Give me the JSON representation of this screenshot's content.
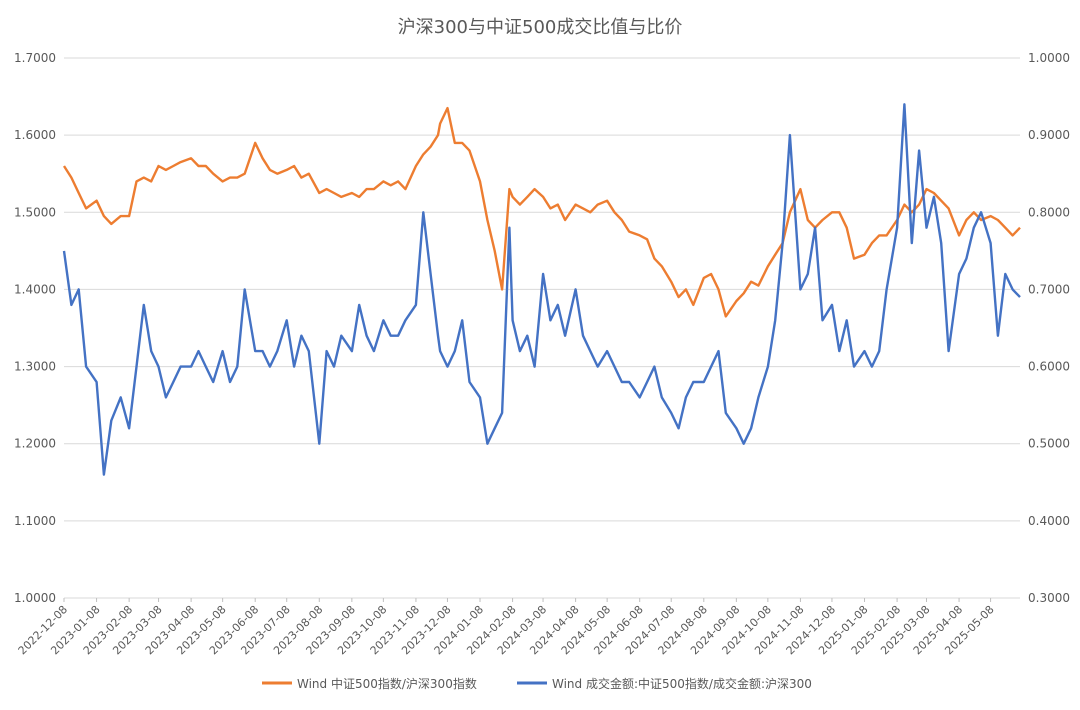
{
  "chart_data": {
    "type": "line",
    "title": "沪深300与中证500成交比值与比价",
    "xlabel": "",
    "ylabel": "",
    "x_tick_labels": [
      "2022-12-08",
      "2023-01-08",
      "2023-02-08",
      "2023-03-08",
      "2023-04-08",
      "2023-05-08",
      "2023-06-08",
      "2023-07-08",
      "2023-08-08",
      "2023-09-08",
      "2023-10-08",
      "2023-11-08",
      "2023-12-08",
      "2024-01-08",
      "2024-02-08",
      "2024-03-08",
      "2024-04-08",
      "2024-05-08",
      "2024-06-08",
      "2024-07-08",
      "2024-08-08",
      "2024-09-08",
      "2024-10-08",
      "2024-11-08",
      "2024-12-08",
      "2025-01-08",
      "2025-02-08",
      "2025-03-08",
      "2025-04-08",
      "2025-05-08"
    ],
    "y_left": {
      "min": 1.0,
      "max": 1.7,
      "ticks": [
        "1.0000",
        "1.1000",
        "1.2000",
        "1.3000",
        "1.4000",
        "1.5000",
        "1.6000",
        "1.7000"
      ]
    },
    "y_right": {
      "min": 0.3,
      "max": 1.0,
      "ticks": [
        "0.3000",
        "0.4000",
        "0.5000",
        "0.6000",
        "0.7000",
        "0.8000",
        "0.9000",
        "1.0000"
      ]
    },
    "grid": true,
    "legend_position": "bottom",
    "series": [
      {
        "name": "Wind 中证500指数/沪深300指数",
        "axis": "left",
        "color": "#ED7D31",
        "x": [
          "2022-12-08",
          "2022-12-15",
          "2022-12-22",
          "2022-12-29",
          "2023-01-08",
          "2023-01-15",
          "2023-01-22",
          "2023-01-31",
          "2023-02-08",
          "2023-02-15",
          "2023-02-22",
          "2023-03-01",
          "2023-03-08",
          "2023-03-15",
          "2023-03-22",
          "2023-03-29",
          "2023-04-08",
          "2023-04-15",
          "2023-04-22",
          "2023-04-29",
          "2023-05-08",
          "2023-05-15",
          "2023-05-22",
          "2023-05-29",
          "2023-06-08",
          "2023-06-15",
          "2023-06-22",
          "2023-06-29",
          "2023-07-08",
          "2023-07-15",
          "2023-07-22",
          "2023-07-29",
          "2023-08-08",
          "2023-08-15",
          "2023-08-22",
          "2023-08-29",
          "2023-09-08",
          "2023-09-15",
          "2023-09-22",
          "2023-09-29",
          "2023-10-08",
          "2023-10-15",
          "2023-10-22",
          "2023-10-29",
          "2023-11-08",
          "2023-11-15",
          "2023-11-22",
          "2023-11-29",
          "2023-12-01",
          "2023-12-08",
          "2023-12-15",
          "2023-12-22",
          "2023-12-29",
          "2024-01-08",
          "2024-01-15",
          "2024-01-22",
          "2024-01-29",
          "2024-02-05",
          "2024-02-08",
          "2024-02-15",
          "2024-02-22",
          "2024-02-29",
          "2024-03-08",
          "2024-03-15",
          "2024-03-22",
          "2024-03-29",
          "2024-04-08",
          "2024-04-15",
          "2024-04-22",
          "2024-04-29",
          "2024-05-08",
          "2024-05-15",
          "2024-05-22",
          "2024-05-29",
          "2024-06-08",
          "2024-06-15",
          "2024-06-22",
          "2024-06-29",
          "2024-07-08",
          "2024-07-15",
          "2024-07-22",
          "2024-07-29",
          "2024-08-08",
          "2024-08-15",
          "2024-08-22",
          "2024-08-29",
          "2024-09-08",
          "2024-09-15",
          "2024-09-22",
          "2024-09-29",
          "2024-10-08",
          "2024-10-15",
          "2024-10-22",
          "2024-10-29",
          "2024-11-08",
          "2024-11-15",
          "2024-11-22",
          "2024-11-29",
          "2024-12-08",
          "2024-12-15",
          "2024-12-22",
          "2024-12-29",
          "2025-01-08",
          "2025-01-15",
          "2025-01-22",
          "2025-01-29",
          "2025-02-08",
          "2025-02-15",
          "2025-02-22",
          "2025-03-01",
          "2025-03-08",
          "2025-03-15",
          "2025-03-22",
          "2025-03-29",
          "2025-04-08",
          "2025-04-15",
          "2025-04-22",
          "2025-04-29",
          "2025-05-08",
          "2025-05-15",
          "2025-05-22",
          "2025-05-29",
          "2025-06-05"
        ],
        "values": [
          1.56,
          1.545,
          1.525,
          1.505,
          1.515,
          1.495,
          1.485,
          1.495,
          1.495,
          1.54,
          1.545,
          1.54,
          1.56,
          1.555,
          1.56,
          1.565,
          1.57,
          1.56,
          1.56,
          1.55,
          1.54,
          1.545,
          1.545,
          1.55,
          1.59,
          1.57,
          1.555,
          1.55,
          1.555,
          1.56,
          1.545,
          1.55,
          1.525,
          1.53,
          1.525,
          1.52,
          1.525,
          1.52,
          1.53,
          1.53,
          1.54,
          1.535,
          1.54,
          1.53,
          1.56,
          1.575,
          1.585,
          1.6,
          1.615,
          1.635,
          1.59,
          1.59,
          1.58,
          1.54,
          1.49,
          1.45,
          1.4,
          1.53,
          1.52,
          1.51,
          1.52,
          1.53,
          1.52,
          1.505,
          1.51,
          1.49,
          1.51,
          1.505,
          1.5,
          1.51,
          1.515,
          1.5,
          1.49,
          1.475,
          1.47,
          1.465,
          1.44,
          1.43,
          1.41,
          1.39,
          1.4,
          1.38,
          1.415,
          1.42,
          1.4,
          1.365,
          1.385,
          1.395,
          1.41,
          1.405,
          1.43,
          1.445,
          1.46,
          1.5,
          1.53,
          1.49,
          1.48,
          1.49,
          1.5,
          1.5,
          1.48,
          1.44,
          1.445,
          1.46,
          1.47,
          1.47,
          1.49,
          1.51,
          1.5,
          1.51,
          1.53,
          1.525,
          1.515,
          1.505,
          1.47,
          1.49,
          1.5,
          1.49,
          1.495,
          1.49,
          1.48,
          1.47,
          1.48
        ],
        "_x_second": []
      },
      {
        "name": "Wind 成交金额:中证500指数/成交金额:沪深300",
        "axis": "right",
        "color": "#4472C4",
        "x": [
          "2022-12-08",
          "2022-12-15",
          "2022-12-22",
          "2022-12-29",
          "2023-01-08",
          "2023-01-15",
          "2023-01-22",
          "2023-01-31",
          "2023-02-08",
          "2023-02-15",
          "2023-02-22",
          "2023-03-01",
          "2023-03-08",
          "2023-03-15",
          "2023-03-22",
          "2023-03-29",
          "2023-04-08",
          "2023-04-15",
          "2023-04-22",
          "2023-04-29",
          "2023-05-08",
          "2023-05-15",
          "2023-05-22",
          "2023-05-29",
          "2023-06-08",
          "2023-06-15",
          "2023-06-22",
          "2023-06-29",
          "2023-07-08",
          "2023-07-15",
          "2023-07-22",
          "2023-07-29",
          "2023-08-08",
          "2023-08-15",
          "2023-08-22",
          "2023-08-29",
          "2023-09-08",
          "2023-09-15",
          "2023-09-22",
          "2023-09-29",
          "2023-10-08",
          "2023-10-15",
          "2023-10-22",
          "2023-10-29",
          "2023-11-08",
          "2023-11-15",
          "2023-11-22",
          "2023-11-29",
          "2023-12-01",
          "2023-12-08",
          "2023-12-15",
          "2023-12-22",
          "2023-12-29",
          "2024-01-08",
          "2024-01-15",
          "2024-01-22",
          "2024-01-29",
          "2024-02-05",
          "2024-02-08",
          "2024-02-15",
          "2024-02-22",
          "2024-02-29",
          "2024-03-08",
          "2024-03-15",
          "2024-03-22",
          "2024-03-29",
          "2024-04-08",
          "2024-04-15",
          "2024-04-22",
          "2024-04-29",
          "2024-05-08",
          "2024-05-15",
          "2024-05-22",
          "2024-05-29",
          "2024-06-08",
          "2024-06-15",
          "2024-06-22",
          "2024-06-29",
          "2024-07-08",
          "2024-07-15",
          "2024-07-22",
          "2024-07-29",
          "2024-08-08",
          "2024-08-15",
          "2024-08-22",
          "2024-08-29",
          "2024-09-08",
          "2024-09-15",
          "2024-09-22",
          "2024-09-29",
          "2024-10-08",
          "2024-10-15",
          "2024-10-22",
          "2024-10-29",
          "2024-11-08",
          "2024-11-15",
          "2024-11-22",
          "2024-11-29",
          "2024-12-08",
          "2024-12-15",
          "2024-12-22",
          "2024-12-29",
          "2025-01-08",
          "2025-01-15",
          "2025-01-22",
          "2025-01-29",
          "2025-02-08",
          "2025-02-15",
          "2025-02-22",
          "2025-03-01",
          "2025-03-08",
          "2025-03-15",
          "2025-03-22",
          "2025-03-29",
          "2025-04-08",
          "2025-04-15",
          "2025-04-22",
          "2025-04-29",
          "2025-05-08",
          "2025-05-15",
          "2025-05-22",
          "2025-05-29",
          "2025-06-05"
        ],
        "values": [
          0.75,
          0.68,
          0.7,
          0.6,
          0.58,
          0.46,
          0.53,
          0.56,
          0.52,
          0.6,
          0.68,
          0.62,
          0.6,
          0.56,
          0.58,
          0.6,
          0.6,
          0.62,
          0.6,
          0.58,
          0.62,
          0.58,
          0.6,
          0.7,
          0.62,
          0.62,
          0.6,
          0.62,
          0.66,
          0.6,
          0.64,
          0.62,
          0.5,
          0.62,
          0.6,
          0.64,
          0.62,
          0.68,
          0.64,
          0.62,
          0.66,
          0.64,
          0.64,
          0.66,
          0.68,
          0.8,
          0.72,
          0.64,
          0.62,
          0.6,
          0.62,
          0.66,
          0.58,
          0.56,
          0.5,
          0.52,
          0.54,
          0.78,
          0.66,
          0.62,
          0.64,
          0.6,
          0.72,
          0.66,
          0.68,
          0.64,
          0.7,
          0.64,
          0.62,
          0.6,
          0.62,
          0.6,
          0.58,
          0.58,
          0.56,
          0.58,
          0.6,
          0.56,
          0.54,
          0.52,
          0.56,
          0.58,
          0.58,
          0.6,
          0.62,
          0.54,
          0.52,
          0.5,
          0.52,
          0.56,
          0.6,
          0.66,
          0.76,
          0.9,
          0.7,
          0.72,
          0.78,
          0.66,
          0.68,
          0.62,
          0.66,
          0.6,
          0.62,
          0.6,
          0.62,
          0.7,
          0.78,
          0.94,
          0.76,
          0.88,
          0.78,
          0.82,
          0.76,
          0.62,
          0.72,
          0.74,
          0.78,
          0.8,
          0.76,
          0.64,
          0.72,
          0.7,
          0.69
        ],
        "_x_second": []
      }
    ]
  }
}
